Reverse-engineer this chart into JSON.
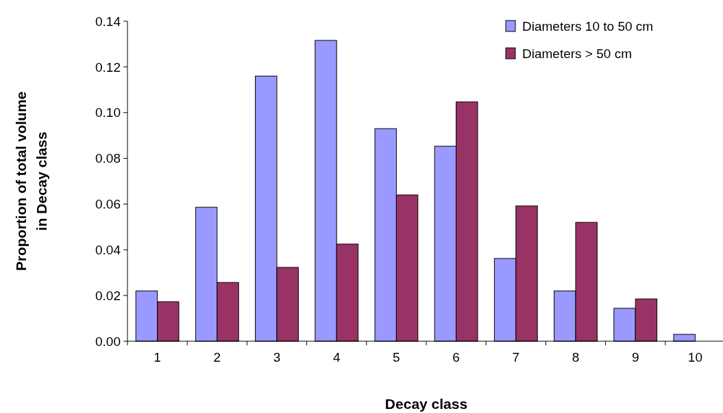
{
  "chart_data": {
    "type": "bar",
    "xlabel": "Decay class",
    "ylabel": "Proportion of total volume\nin Decay class",
    "categories": [
      "1",
      "2",
      "3",
      "4",
      "5",
      "6",
      "7",
      "8",
      "9",
      "10"
    ],
    "series": [
      {
        "name": "Diameters 10 to 50 cm",
        "color": "#9999ff",
        "values": [
          0.022,
          0.0586,
          0.116,
          0.1316,
          0.093,
          0.0853,
          0.0362,
          0.022,
          0.0144,
          0.003
        ]
      },
      {
        "name": "Diameters > 50 cm",
        "color": "#993366",
        "values": [
          0.0173,
          0.0257,
          0.0323,
          0.0425,
          0.064,
          0.1047,
          0.0592,
          0.052,
          0.0185,
          null
        ]
      }
    ],
    "ylim": [
      0,
      0.14
    ],
    "yticks": [
      {
        "value": 0,
        "label": "0.00"
      },
      {
        "value": 0.02,
        "label": "0.02"
      },
      {
        "value": 0.04,
        "label": "0.04"
      },
      {
        "value": 0.06,
        "label": "0.06"
      },
      {
        "value": 0.08,
        "label": "0.08"
      },
      {
        "value": 0.1,
        "label": "0.10"
      },
      {
        "value": 0.12,
        "label": "0.12"
      },
      {
        "value": 0.14,
        "label": "0.14"
      }
    ],
    "grid": false,
    "legend": "top right"
  }
}
